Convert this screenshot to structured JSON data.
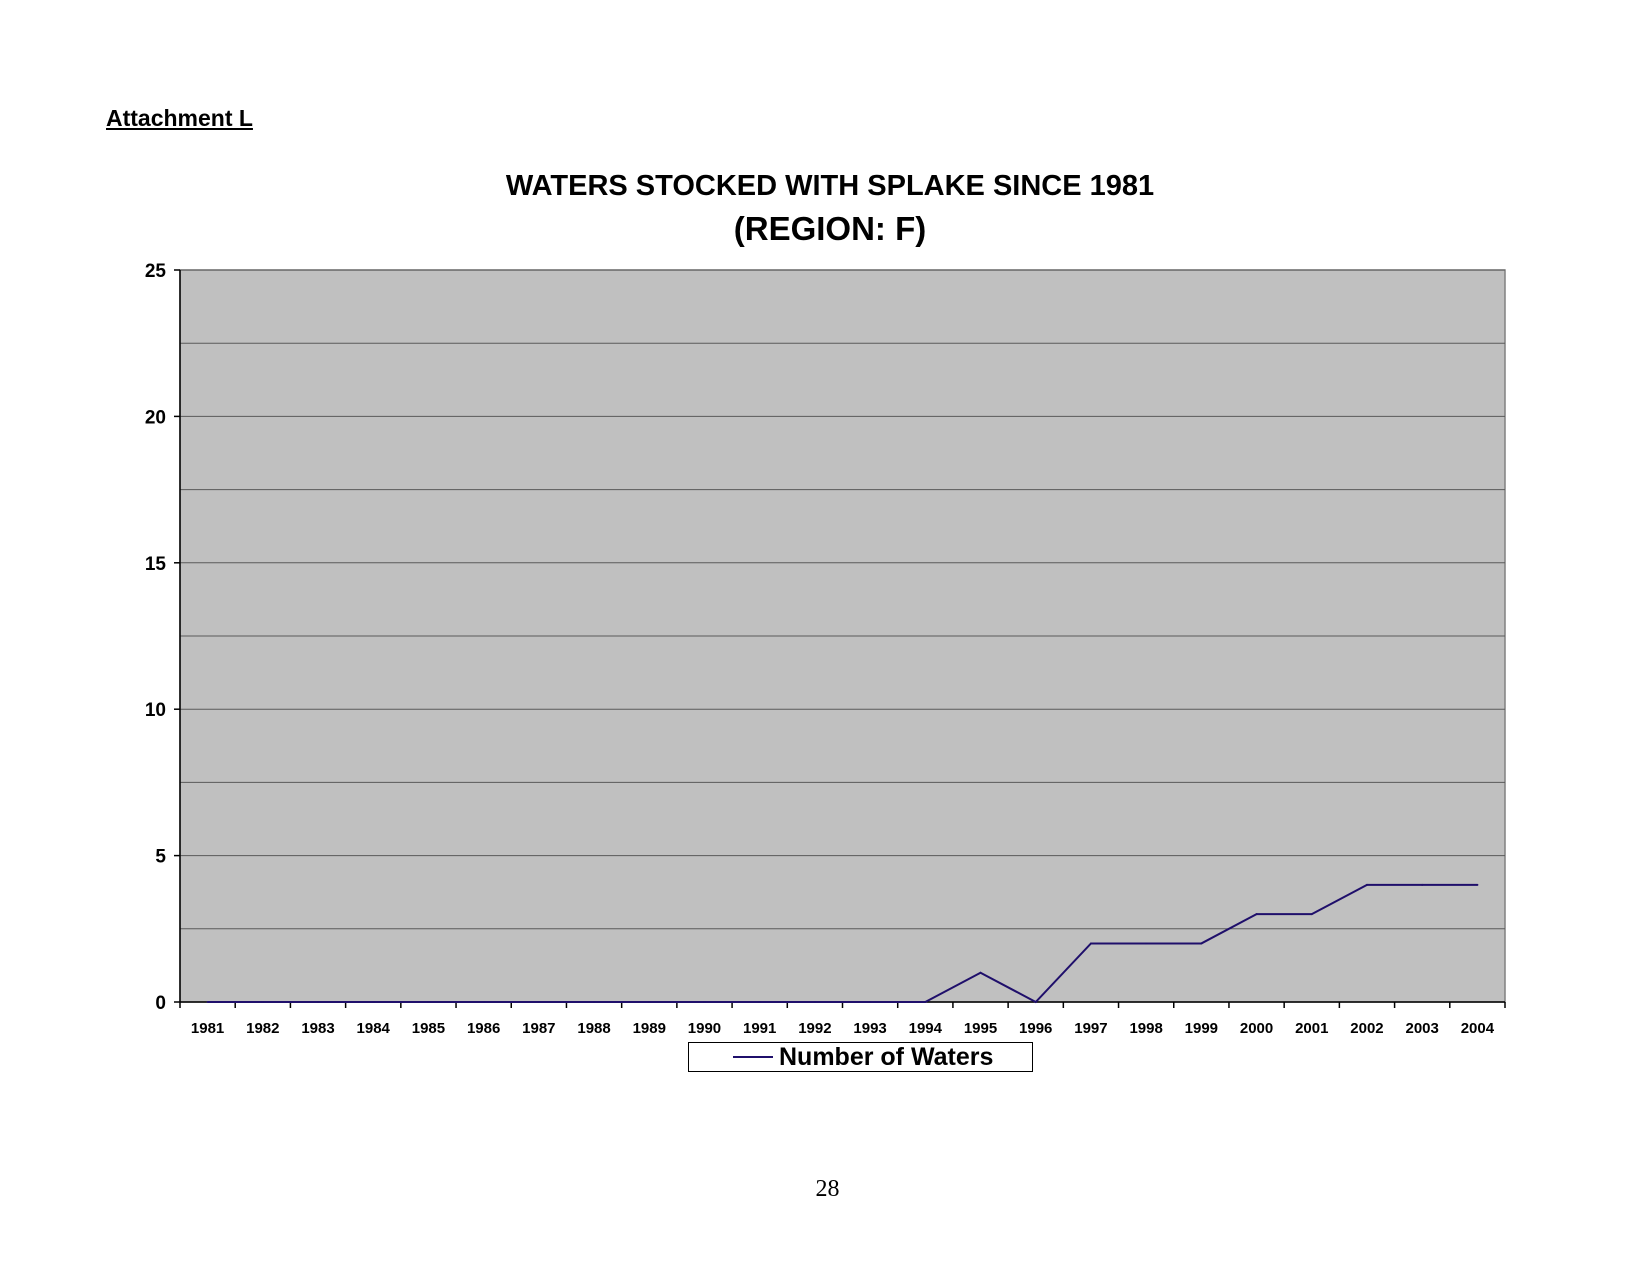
{
  "page": {
    "attachment_label": "Attachment L",
    "page_number": "28"
  },
  "chart_data": {
    "type": "line",
    "title": "WATERS STOCKED WITH SPLAKE SINCE 1981",
    "subtitle": "(REGION: F)",
    "xlabel": "",
    "ylabel": "",
    "categories": [
      "1981",
      "1982",
      "1983",
      "1984",
      "1985",
      "1986",
      "1987",
      "1988",
      "1989",
      "1990",
      "1991",
      "1992",
      "1993",
      "1994",
      "1995",
      "1996",
      "1997",
      "1998",
      "1999",
      "2000",
      "2001",
      "2002",
      "2003",
      "2004"
    ],
    "series": [
      {
        "name": "Number of Waters",
        "values": [
          0,
          0,
          0,
          0,
          0,
          0,
          0,
          0,
          0,
          0,
          0,
          0,
          0,
          0,
          1,
          0,
          2,
          2,
          2,
          3,
          3,
          4,
          4,
          4
        ],
        "color": "#1f0f6b"
      }
    ],
    "ylim": [
      0,
      25
    ],
    "yticks": [
      0,
      5,
      10,
      15,
      20,
      25
    ],
    "grid_step": 2.5,
    "grid": true,
    "legend_position": "bottom",
    "plot_background": "#c0c0c0"
  }
}
